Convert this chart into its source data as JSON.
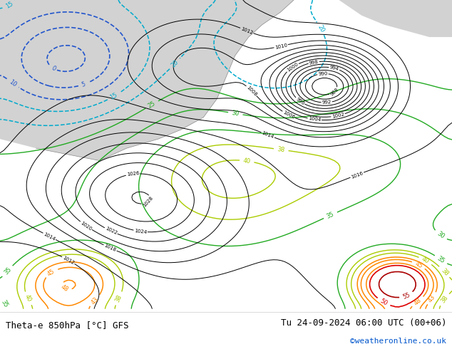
{
  "title_left": "Theta-e 850hPa [°C] GFS",
  "title_right": "Tu 24-09-2024 06:00 UTC (00+06)",
  "credit": "©weatheronline.co.uk",
  "bg_map_land": "#c8e89a",
  "bg_map_sea": "#d8d8d8",
  "bottom_bar_color": "#ffffff",
  "title_left_color": "#000000",
  "title_right_color": "#000000",
  "credit_color": "#0055cc",
  "title_fontsize": 9,
  "credit_fontsize": 8
}
